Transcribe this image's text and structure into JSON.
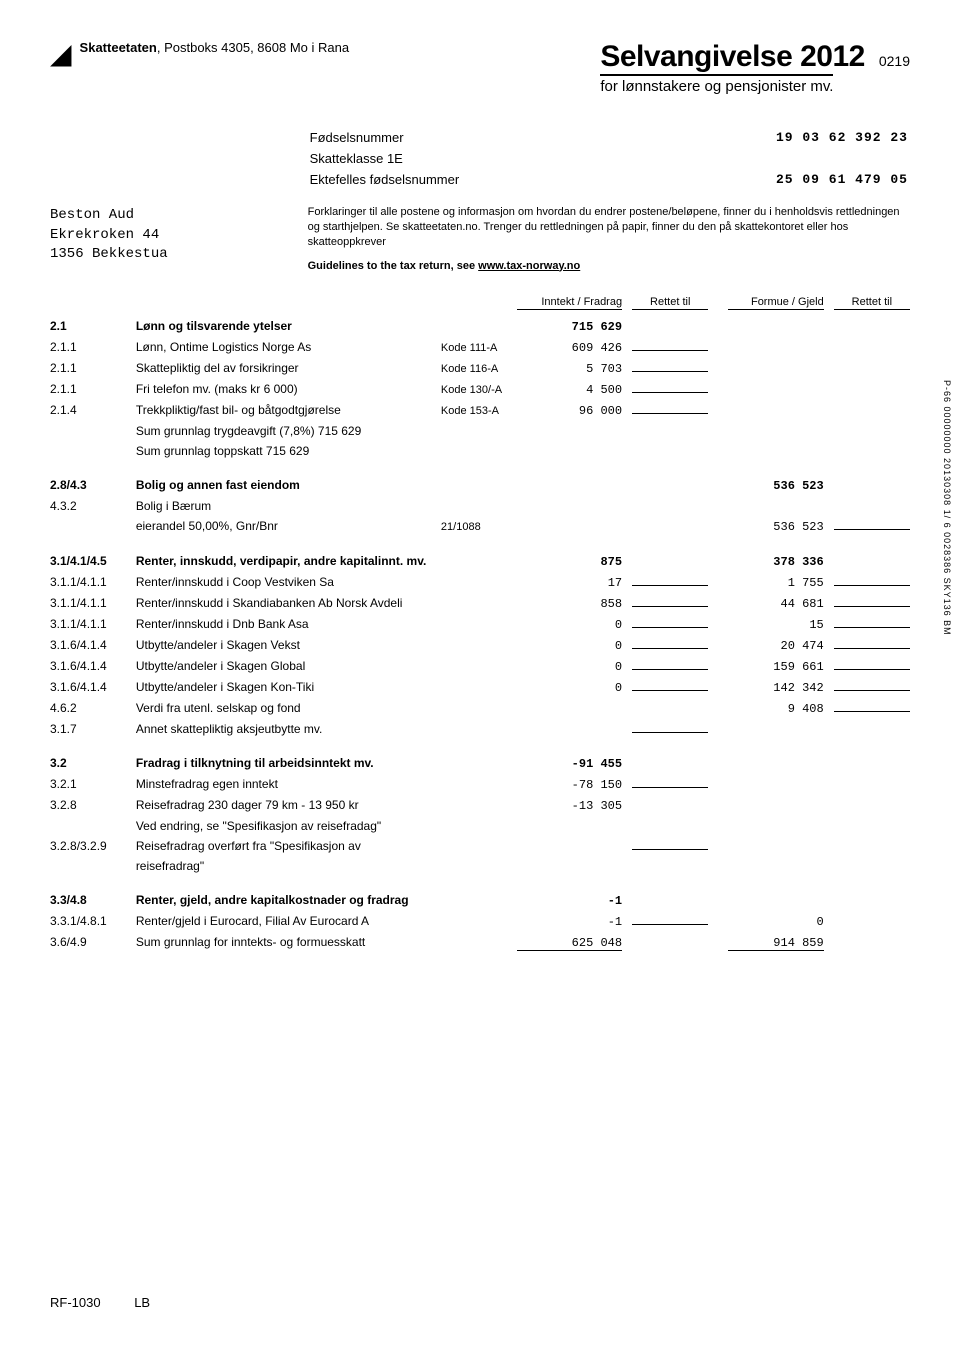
{
  "header": {
    "org_bold": "Skatteetaten",
    "org_rest": ", Postboks 4305, 8608 Mo i Rana",
    "title": "Selvangivelse 2012",
    "subtitle": "for lønnstakere og pensjonister mv.",
    "code": "0219"
  },
  "address": {
    "l1": "Beston Aud",
    "l2": "Ekrekroken 44",
    "l3": "1356 Bekkestua"
  },
  "ids": {
    "fn_label": "Fødselsnummer",
    "fn_value": "19 03 62 392 23",
    "sk_label": "Skatteklasse  1E",
    "efn_label": "Ektefelles fødselsnummer",
    "efn_value": "25 09 61 479 05"
  },
  "explain": "Forklaringer til alle postene og informasjon om hvordan du endrer postene/beløpene, finner du i henholdsvis rettledningen og starthjelpen. Se skatteetaten.no. Trenger du rettledningen på papir, finner du den på skattekontoret eller hos skatteoppkrever",
  "guidelines_prefix": "Guidelines to the tax return, see ",
  "guidelines_link": "www.tax-norway.no",
  "col": {
    "inntekt": "Inntekt / Fradrag",
    "rettet": "Rettet til",
    "formue": "Formue / Gjeld"
  },
  "rows": [
    {
      "code": "2.1",
      "desc": "Lønn og tilsvarende ytelser",
      "kode": "",
      "v1": "715 629",
      "v2": "",
      "bold": true,
      "l1": false,
      "l2": false
    },
    {
      "code": "2.1.1",
      "desc": "Lønn, Ontime Logistics Norge As",
      "kode": "Kode 111-A",
      "v1": "609 426",
      "v2": "",
      "l1": true,
      "l2": false
    },
    {
      "code": "2.1.1",
      "desc": "Skattepliktig del av forsikringer",
      "kode": "Kode 116-A",
      "v1": "5 703",
      "v2": "",
      "l1": true,
      "l2": false
    },
    {
      "code": "2.1.1",
      "desc": "Fri telefon mv. (maks kr 6 000)",
      "kode": "Kode 130/-A",
      "v1": "4 500",
      "v2": "",
      "l1": true,
      "l2": false
    },
    {
      "code": "2.1.4",
      "desc": "Trekkpliktig/fast bil- og båtgodtgjørelse",
      "kode": "Kode 153-A",
      "v1": "96 000",
      "v2": "",
      "l1": true,
      "l2": false
    },
    {
      "code": "",
      "desc": "Sum grunnlag trygdeavgift (7,8%) 715 629",
      "kode": "",
      "v1": "",
      "v2": "",
      "l1": false,
      "l2": false
    },
    {
      "code": "",
      "desc": "Sum grunnlag toppskatt 715 629",
      "kode": "",
      "v1": "",
      "v2": "",
      "l1": false,
      "l2": false
    },
    {
      "code": "2.8/4.3",
      "desc": "Bolig og annen fast eiendom",
      "kode": "",
      "v1": "",
      "v2": "536 523",
      "bold": true,
      "l1": false,
      "l2": false,
      "gap": true
    },
    {
      "code": "4.3.2",
      "desc": "Bolig i Bærum",
      "kode": "",
      "v1": "",
      "v2": "",
      "l1": false,
      "l2": false
    },
    {
      "code": "",
      "desc": "eierandel 50,00%, Gnr/Bnr",
      "kode": "21/1088",
      "v1": "",
      "v2": "536 523",
      "l1": false,
      "l2": true
    },
    {
      "code": "3.1/4.1/4.5",
      "desc": "Renter, innskudd, verdipapir, andre kapitalinnt. mv.",
      "kode": "",
      "v1": "875",
      "v2": "378 336",
      "bold": true,
      "l1": false,
      "l2": false,
      "gap": true
    },
    {
      "code": "3.1.1/4.1.1",
      "desc": "Renter/innskudd i Coop Vestviken Sa",
      "kode": "",
      "v1": "17",
      "v2": "1 755",
      "l1": true,
      "l2": true
    },
    {
      "code": "3.1.1/4.1.1",
      "desc": "Renter/innskudd i Skandiabanken Ab Norsk Avdeli",
      "kode": "",
      "v1": "858",
      "v2": "44 681",
      "l1": true,
      "l2": true
    },
    {
      "code": "3.1.1/4.1.1",
      "desc": "Renter/innskudd i Dnb Bank Asa",
      "kode": "",
      "v1": "0",
      "v2": "15",
      "l1": true,
      "l2": true
    },
    {
      "code": "3.1.6/4.1.4",
      "desc": "Utbytte/andeler i Skagen Vekst",
      "kode": "",
      "v1": "0",
      "v2": "20 474",
      "l1": true,
      "l2": true
    },
    {
      "code": "3.1.6/4.1.4",
      "desc": "Utbytte/andeler i Skagen Global",
      "kode": "",
      "v1": "0",
      "v2": "159 661",
      "l1": true,
      "l2": true
    },
    {
      "code": "3.1.6/4.1.4",
      "desc": "Utbytte/andeler i Skagen Kon-Tiki",
      "kode": "",
      "v1": "0",
      "v2": "142 342",
      "l1": true,
      "l2": true
    },
    {
      "code": "4.6.2",
      "desc": "Verdi fra utenl. selskap og fond",
      "kode": "",
      "v1": "",
      "v2": "9 408",
      "l1": false,
      "l2": true
    },
    {
      "code": "3.1.7",
      "desc": "Annet skattepliktig aksjeutbytte mv.",
      "kode": "",
      "v1": "",
      "v2": "",
      "l1": true,
      "l2": false
    },
    {
      "code": "3.2",
      "desc": "Fradrag i tilknytning til arbeidsinntekt mv.",
      "kode": "",
      "v1": "-91 455",
      "v2": "",
      "bold": true,
      "l1": false,
      "l2": false,
      "gap": true
    },
    {
      "code": "3.2.1",
      "desc": "Minstefradrag egen inntekt",
      "kode": "",
      "v1": "-78 150",
      "v2": "",
      "l1": true,
      "l2": false
    },
    {
      "code": "3.2.8",
      "desc": "Reisefradrag 230 dager 79 km - 13 950 kr",
      "kode": "",
      "v1": "-13 305",
      "v2": "",
      "l1": false,
      "l2": false
    },
    {
      "code": "",
      "desc": "Ved endring, se \"Spesifikasjon av reisefradag\"",
      "kode": "",
      "v1": "",
      "v2": "",
      "l1": false,
      "l2": false
    },
    {
      "code": "3.2.8/3.2.9",
      "desc": "Reisefradrag overført fra \"Spesifikasjon av",
      "kode": "",
      "v1": "",
      "v2": "",
      "l1": true,
      "l2": false
    },
    {
      "code": "",
      "desc": "reisefradrag\"",
      "kode": "",
      "v1": "",
      "v2": "",
      "l1": false,
      "l2": false
    },
    {
      "code": "3.3/4.8",
      "desc": "Renter, gjeld, andre kapitalkostnader og fradrag",
      "kode": "",
      "v1": "-1",
      "v2": "",
      "bold": true,
      "l1": false,
      "l2": false,
      "gap": true
    },
    {
      "code": "3.3.1/4.8.1",
      "desc": "Renter/gjeld i Eurocard, Filial Av Eurocard A",
      "kode": "",
      "v1": "-1",
      "v2": "0",
      "l1": true,
      "l2": false
    },
    {
      "code": "3.6/4.9",
      "desc": "Sum grunnlag for inntekts- og formuesskatt",
      "kode": "",
      "v1": "625 048",
      "v2": "914 859",
      "l1": false,
      "l2": false,
      "totline": true
    }
  ],
  "side": "P-66   00000000   20130308   1/ 6   0028386   SKY136   BM",
  "footer": {
    "form": "RF-1030",
    "lb": "LB"
  }
}
